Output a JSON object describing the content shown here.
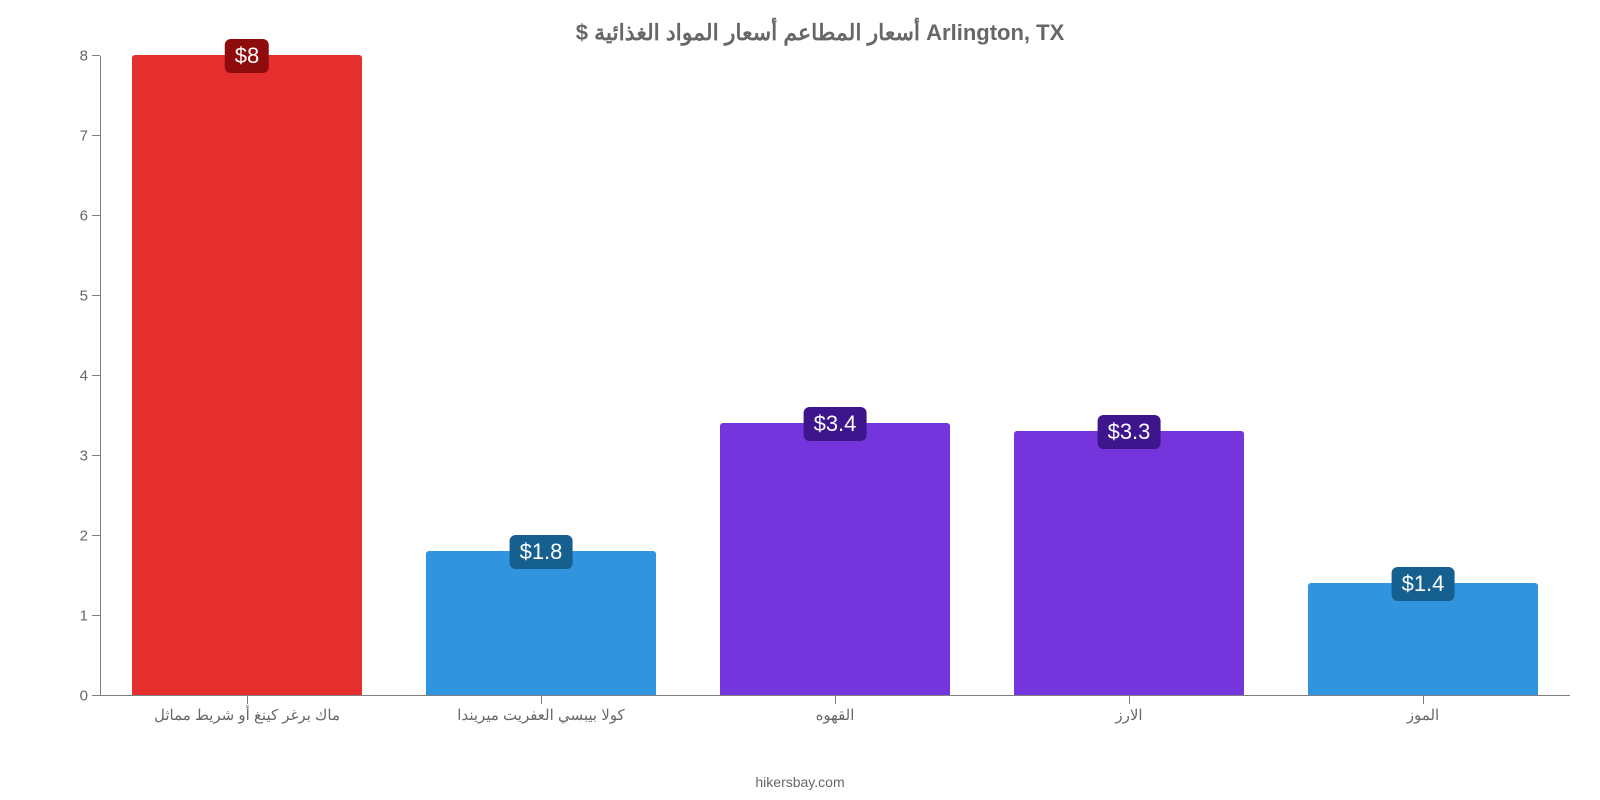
{
  "chart": {
    "type": "bar",
    "title": "$ أسعار المطاعم أسعار المواد الغذائية Arlington, TX",
    "title_fontsize": 22,
    "title_color": "#676767",
    "background_color": "#ffffff",
    "axis_color": "#808080",
    "label_color": "#676767",
    "label_fontsize": 15,
    "tick_fontsize": 15,
    "ylim": [
      0,
      8
    ],
    "ytick_step": 1,
    "yticks": [
      0,
      1,
      2,
      3,
      4,
      5,
      6,
      7,
      8
    ],
    "bar_width": 0.78,
    "categories": [
      "ماك برغر كينغ أو شريط مماثل",
      "كولا بيبسي العفريت ميريندا",
      "القهوه",
      "الارز",
      "الموز"
    ],
    "values": [
      8,
      1.8,
      3.4,
      3.3,
      1.4
    ],
    "value_labels": [
      "$8",
      "$1.8",
      "$3.4",
      "$3.3",
      "$1.4"
    ],
    "bar_colors": [
      "#e52f2e",
      "#3095de",
      "#7436dc",
      "#7436dc",
      "#3095de"
    ],
    "badge_bg_colors": [
      "#8e0d0c",
      "#15608f",
      "#3d158c",
      "#3d158c",
      "#15608f"
    ],
    "badge_fontsize": 22,
    "badge_text_color": "#ffffff",
    "credit": "hikersbay.com",
    "credit_fontsize": 14
  }
}
